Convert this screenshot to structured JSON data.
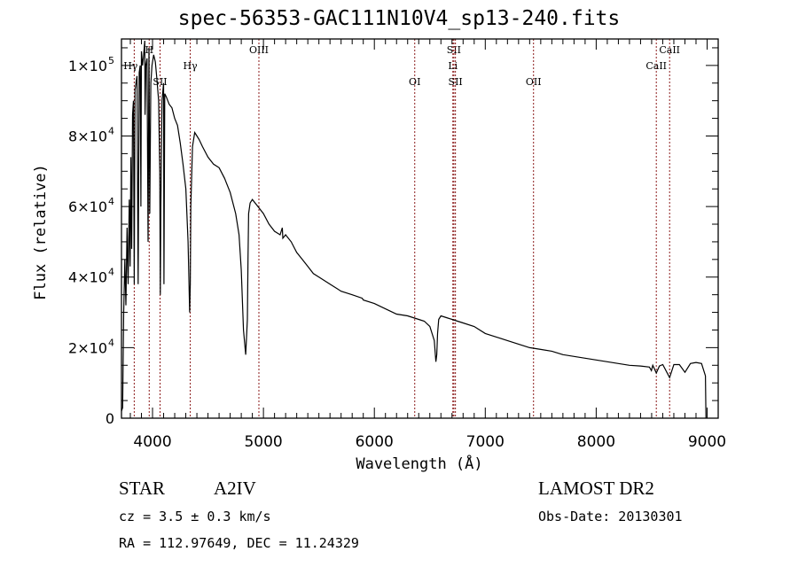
{
  "chart_data": {
    "type": "line",
    "title": "spec-56353-GAC111N10V4_sp13-240.fits",
    "xlabel": "Wavelength (Å)",
    "ylabel": "Flux (relative)",
    "xlim": [
      3720,
      9100
    ],
    "ylim": [
      0,
      107500
    ],
    "x_ticks": [
      {
        "value": 4000,
        "label": "4000"
      },
      {
        "value": 5000,
        "label": "5000"
      },
      {
        "value": 6000,
        "label": "6000"
      },
      {
        "value": 7000,
        "label": "7000"
      },
      {
        "value": 8000,
        "label": "8000"
      },
      {
        "value": 9000,
        "label": "9000"
      }
    ],
    "y_ticks": [
      {
        "value": 0,
        "mant": "0",
        "exp": ""
      },
      {
        "value": 20000,
        "mant": "2×10",
        "exp": "4"
      },
      {
        "value": 40000,
        "mant": "4×10",
        "exp": "4"
      },
      {
        "value": 60000,
        "mant": "6×10",
        "exp": "4"
      },
      {
        "value": 80000,
        "mant": "8×10",
        "exp": "4"
      },
      {
        "value": 100000,
        "mant": "1×10",
        "exp": "5"
      }
    ],
    "line_markers": [
      {
        "name": "Hγ",
        "wavelength": 3835,
        "label_row": 1,
        "label_side": "left"
      },
      {
        "name": "H",
        "wavelength": 3970,
        "label_row": 0,
        "label_side": "center"
      },
      {
        "name": "SII",
        "wavelength": 4068,
        "label_row": 2,
        "label_side": "center"
      },
      {
        "name": "Hγ",
        "wavelength": 4340,
        "label_row": 1,
        "label_side": "center"
      },
      {
        "name": "OIII",
        "wavelength": 4959,
        "label_row": 0,
        "label_side": "center"
      },
      {
        "name": "OI",
        "wavelength": 6364,
        "label_row": 2,
        "label_side": "center"
      },
      {
        "name": "SII",
        "wavelength": 6717,
        "label_row": 0,
        "label_side": "center"
      },
      {
        "name": "Li",
        "wavelength": 6708,
        "label_row": 1,
        "label_side": "center"
      },
      {
        "name": "SII",
        "wavelength": 6731,
        "label_row": 2,
        "label_side": "center"
      },
      {
        "name": "OII",
        "wavelength": 7435,
        "label_row": 2,
        "label_side": "center"
      },
      {
        "name": "CaII",
        "wavelength": 8542,
        "label_row": 1,
        "label_side": "center"
      },
      {
        "name": "CaII",
        "wavelength": 8662,
        "label_row": 0,
        "label_side": "center"
      }
    ],
    "series": [
      {
        "name": "spectrum",
        "x": [
          3720,
          3730,
          3740,
          3750,
          3760,
          3770,
          3780,
          3790,
          3798,
          3805,
          3812,
          3820,
          3828,
          3835,
          3842,
          3850,
          3860,
          3870,
          3880,
          3889,
          3895,
          3900,
          3910,
          3920,
          3930,
          3933,
          3940,
          3950,
          3960,
          3968,
          3975,
          3985,
          3995,
          4010,
          4025,
          4040,
          4055,
          4065,
          4070,
          4075,
          4085,
          4100,
          4103,
          4110,
          4125,
          4150,
          4175,
          4200,
          4225,
          4250,
          4275,
          4300,
          4320,
          4335,
          4340,
          4345,
          4360,
          4380,
          4400,
          4420,
          4450,
          4500,
          4550,
          4600,
          4650,
          4700,
          4750,
          4780,
          4800,
          4820,
          4840,
          4855,
          4861,
          4866,
          4880,
          4900,
          4950,
          5000,
          5050,
          5100,
          5150,
          5170,
          5175,
          5200,
          5250,
          5300,
          5350,
          5400,
          5450,
          5500,
          5600,
          5700,
          5800,
          5890,
          5900,
          6000,
          6100,
          6200,
          6300,
          6400,
          6450,
          6500,
          6540,
          6555,
          6563,
          6570,
          6580,
          6600,
          6650,
          6700,
          6750,
          6800,
          6900,
          7000,
          7100,
          7200,
          7300,
          7400,
          7500,
          7600,
          7700,
          7800,
          7900,
          8000,
          8100,
          8200,
          8300,
          8400,
          8480,
          8498,
          8510,
          8542,
          8570,
          8600,
          8662,
          8700,
          8750,
          8800,
          8850,
          8900,
          8950,
          8985,
          8990
        ],
        "y": [
          2000,
          3000,
          30000,
          45000,
          32000,
          54000,
          38000,
          62000,
          43000,
          74000,
          48000,
          86000,
          90000,
          38000,
          93000,
          95000,
          97000,
          38000,
          98000,
          100000,
          60000,
          104000,
          100000,
          103000,
          107000,
          86000,
          100000,
          102000,
          50000,
          105000,
          58000,
          95000,
          100000,
          103000,
          101000,
          96000,
          90000,
          70000,
          35000,
          60000,
          90000,
          95000,
          38000,
          92000,
          91000,
          89000,
          88000,
          85000,
          83000,
          78000,
          72000,
          65000,
          50000,
          30000,
          38000,
          60000,
          77000,
          81000,
          80000,
          79000,
          77000,
          74000,
          72000,
          71000,
          68000,
          64000,
          58000,
          52000,
          42000,
          25000,
          18000,
          28000,
          45000,
          58000,
          61000,
          62000,
          60000,
          58000,
          55000,
          53000,
          52000,
          54000,
          51000,
          52000,
          50000,
          47000,
          45000,
          43000,
          41000,
          40000,
          38000,
          36000,
          35000,
          34000,
          33500,
          32500,
          31000,
          29500,
          29000,
          28000,
          27500,
          26000,
          22000,
          16000,
          18000,
          24000,
          28000,
          29000,
          28500,
          28000,
          27500,
          27000,
          26000,
          24000,
          23000,
          22000,
          21000,
          20000,
          19500,
          19000,
          18000,
          17500,
          17000,
          16500,
          16000,
          15500,
          15000,
          14800,
          14500,
          13500,
          15000,
          12800,
          14800,
          15200,
          11500,
          15200,
          15200,
          13000,
          15500,
          15800,
          15500,
          12000,
          0
        ]
      }
    ]
  },
  "info": {
    "object_type": "STAR",
    "subclass": "A2IV",
    "survey": "LAMOST DR2",
    "cz": "cz = 3.5 ± 0.3 km/s",
    "obs_date": "Obs-Date: 20130301",
    "coords": "RA = 112.97649, DEC =  11.24329"
  },
  "colors": {
    "line": "#000000",
    "marker": "#8b1a1a",
    "axis": "#000000"
  }
}
